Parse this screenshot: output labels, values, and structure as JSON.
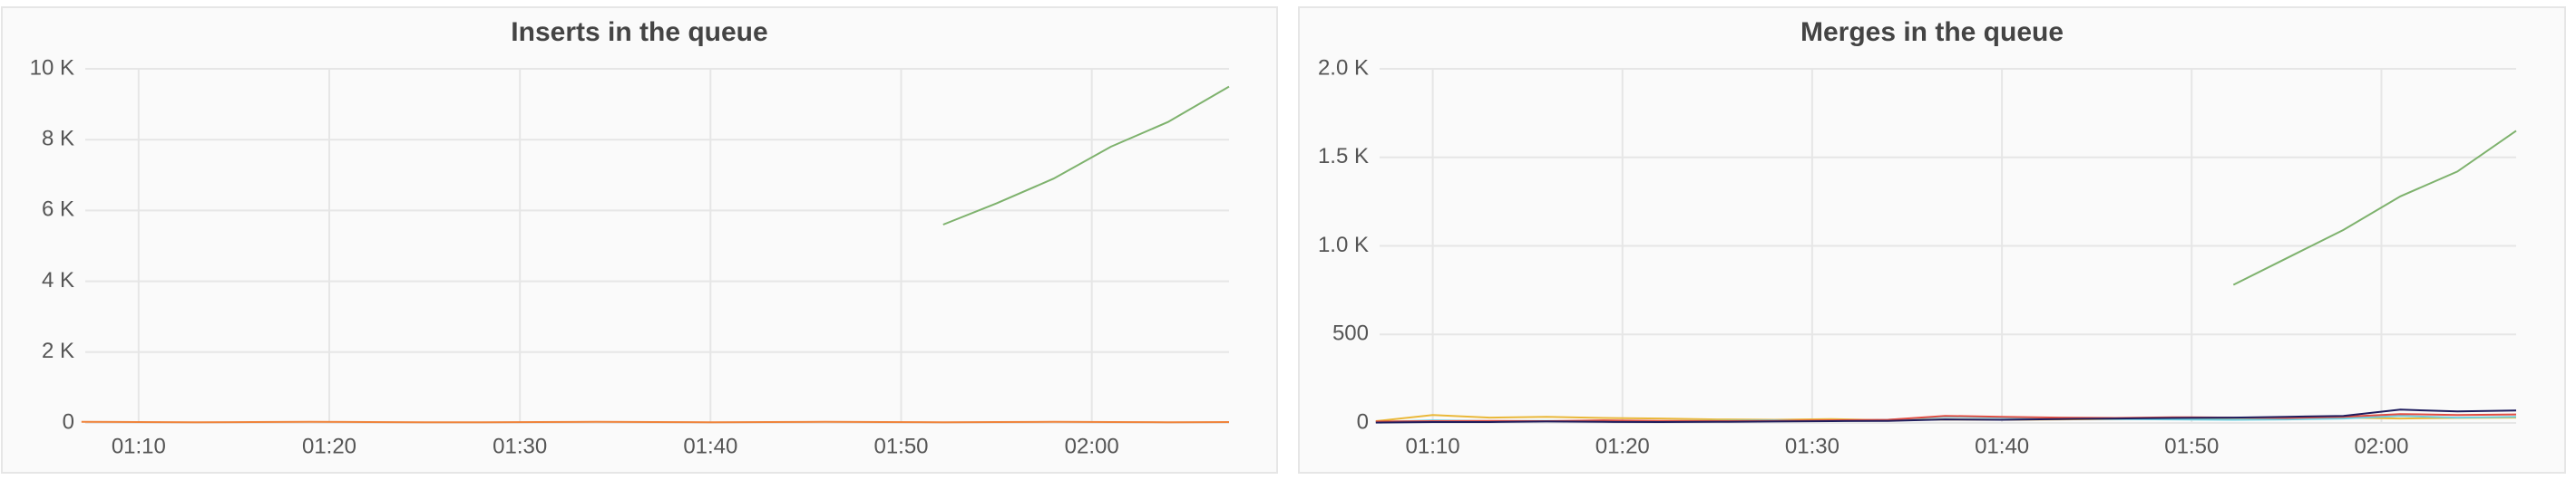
{
  "chart_data": [
    {
      "type": "line",
      "title": "Inserts in the queue",
      "x": [
        67,
        70,
        73,
        76,
        79,
        82,
        85,
        88,
        91,
        94,
        97,
        100,
        103,
        106,
        109,
        112.2,
        115,
        118,
        121,
        124,
        127.2
      ],
      "xlim": [
        67.2,
        127.2
      ],
      "xticks": [
        {
          "value": 70,
          "label": "01:10"
        },
        {
          "value": 80,
          "label": "01:20"
        },
        {
          "value": 90,
          "label": "01:30"
        },
        {
          "value": 100,
          "label": "01:40"
        },
        {
          "value": 110,
          "label": "01:50"
        },
        {
          "value": 120,
          "label": "02:00"
        }
      ],
      "ylim": [
        0,
        10000
      ],
      "yticks": [
        0,
        {
          "value": 2000,
          "label": "2 K"
        },
        {
          "value": 4000,
          "label": "4 K"
        },
        {
          "value": 6000,
          "label": "6 K"
        },
        {
          "value": 8000,
          "label": "8 K"
        },
        {
          "value": 10000,
          "label": "10 K"
        }
      ],
      "grid": true,
      "series": [
        {
          "color": "#7eb26d",
          "values": [
            null,
            null,
            null,
            null,
            null,
            null,
            null,
            null,
            null,
            null,
            null,
            null,
            null,
            null,
            null,
            5600,
            6200,
            6900,
            7800,
            8500,
            9500
          ]
        },
        {
          "color": "#ef843c",
          "values": [
            30,
            25,
            20,
            25,
            30,
            25,
            20,
            20,
            25,
            30,
            25,
            20,
            25,
            30,
            25,
            20,
            25,
            30,
            25,
            20,
            25
          ]
        }
      ]
    },
    {
      "type": "line",
      "title": "Merges in the queue",
      "x": [
        67,
        70,
        73,
        76,
        79,
        82,
        85,
        88,
        91,
        94,
        97,
        100,
        103,
        106,
        109,
        112.2,
        115,
        118,
        121,
        124,
        127.1
      ],
      "xlim": [
        67.2,
        127.1
      ],
      "xticks": [
        {
          "value": 70,
          "label": "01:10"
        },
        {
          "value": 80,
          "label": "01:20"
        },
        {
          "value": 90,
          "label": "01:30"
        },
        {
          "value": 100,
          "label": "01:40"
        },
        {
          "value": 110,
          "label": "01:50"
        },
        {
          "value": 120,
          "label": "02:00"
        }
      ],
      "ylim": [
        0,
        2000
      ],
      "yticks": [
        0,
        500,
        {
          "value": 1000,
          "label": "1.0 K"
        },
        {
          "value": 1500,
          "label": "1.5 K"
        },
        {
          "value": 2000,
          "label": "2.0 K"
        }
      ],
      "grid": true,
      "series": [
        {
          "color": "#7eb26d",
          "values": [
            null,
            null,
            null,
            null,
            null,
            null,
            null,
            null,
            null,
            null,
            null,
            null,
            null,
            null,
            null,
            780,
            930,
            1090,
            1280,
            1420,
            1650
          ]
        },
        {
          "color": "#eab839",
          "values": [
            10,
            45,
            30,
            35,
            28,
            25,
            20,
            18,
            22,
            15,
            20,
            18,
            20,
            22,
            25,
            20,
            22,
            30,
            25,
            28,
            30
          ]
        },
        {
          "color": "#6ed0e0",
          "values": [
            5,
            15,
            10,
            12,
            8,
            10,
            12,
            15,
            10,
            18,
            35,
            30,
            25,
            22,
            20,
            18,
            20,
            25,
            40,
            30,
            35
          ]
        },
        {
          "color": "#e24d42",
          "values": [
            8,
            10,
            12,
            10,
            15,
            12,
            10,
            12,
            15,
            18,
            40,
            35,
            30,
            28,
            32,
            30,
            28,
            35,
            50,
            45,
            48
          ]
        },
        {
          "color": "#1f1d5e",
          "values": [
            2,
            5,
            5,
            8,
            6,
            5,
            6,
            8,
            10,
            12,
            20,
            18,
            22,
            25,
            28,
            30,
            35,
            40,
            75,
            65,
            70
          ]
        }
      ]
    }
  ]
}
